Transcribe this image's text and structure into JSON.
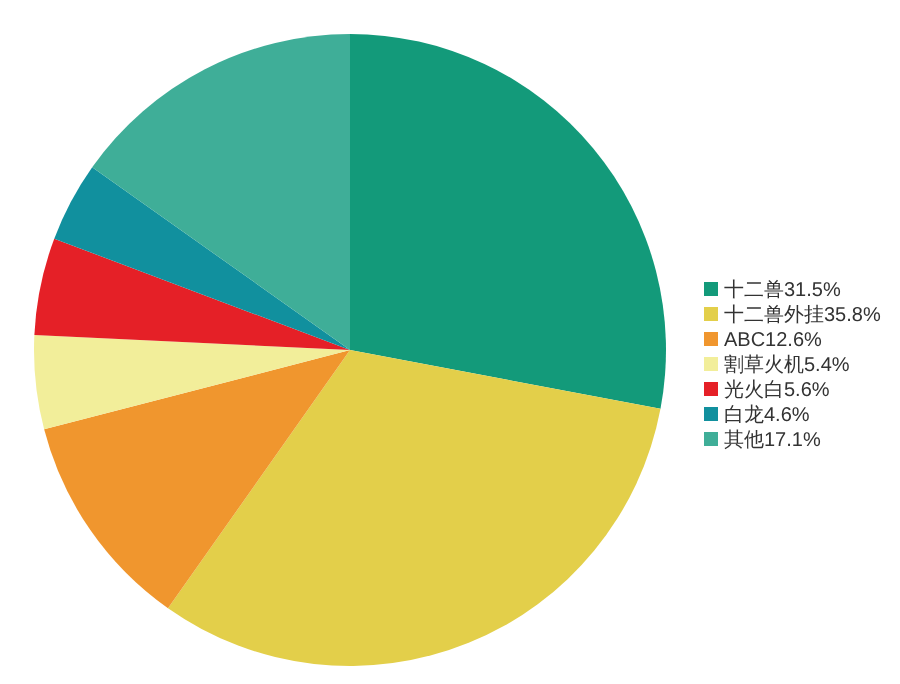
{
  "chart_data": {
    "type": "pie",
    "categories": [
      "十二兽31.5%",
      "十二兽外挂35.8%",
      "ABC12.6%",
      "割草火机5.4%",
      "光火白5.6%",
      "白龙4.6%",
      "其他17.1%"
    ],
    "values": [
      31.5,
      35.8,
      12.6,
      5.4,
      5.6,
      4.6,
      17.1
    ],
    "colors": [
      "#139a7a",
      "#e3cf4a",
      "#f0962e",
      "#f2ee9a",
      "#e52027",
      "#11909e",
      "#3fae98"
    ],
    "legend": "right"
  }
}
